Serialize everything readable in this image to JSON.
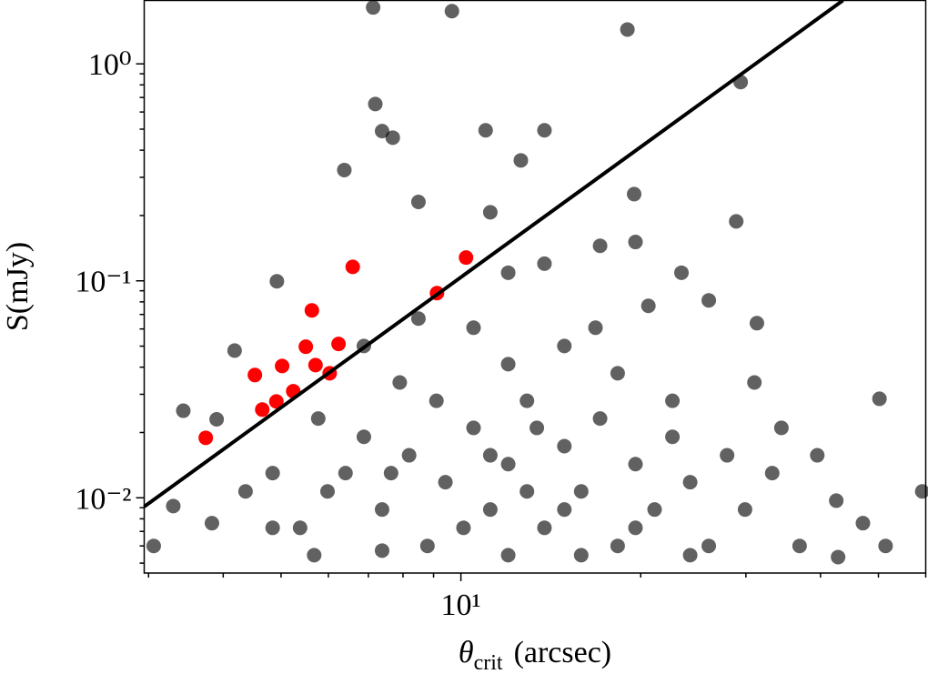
{
  "chart_data": {
    "type": "scatter",
    "xlabel": {
      "symbol": "θ",
      "subscript": "crit",
      "unit": "(arcsec)"
    },
    "ylabel": "S(mJy)",
    "xscale": "log",
    "yscale": "log",
    "xlim": [
      2.95,
      60
    ],
    "ylim": [
      0.0045,
      1.96
    ],
    "xticks": [
      {
        "value": 10,
        "label": "10¹"
      }
    ],
    "yticks": [
      {
        "value": 0.01,
        "label": "10⁻²"
      },
      {
        "value": 0.1,
        "label": "10⁻¹"
      },
      {
        "value": 1,
        "label": "10⁰"
      }
    ],
    "xminor": [
      3,
      4,
      5,
      6,
      7,
      8,
      9,
      20,
      30,
      40,
      50,
      60
    ],
    "yminor": [
      0.005,
      0.006,
      0.007,
      0.008,
      0.009,
      0.02,
      0.03,
      0.04,
      0.05,
      0.06,
      0.07,
      0.08,
      0.09,
      0.2,
      0.3,
      0.4,
      0.5,
      0.6,
      0.7,
      0.8,
      0.9
    ],
    "line": {
      "color": "#000000",
      "x": [
        2.95,
        43.6
      ],
      "y": [
        0.0091,
        1.96
      ]
    },
    "series": [
      {
        "color": "#000000",
        "alpha": 0.62,
        "x": [
          7.13,
          9.66,
          7.19,
          7.38,
          7.69,
          6.38,
          8.49,
          11.0,
          4.92,
          4.18,
          3.43,
          3.9,
          3.06,
          3.3,
          3.83,
          4.36,
          4.84,
          5.38,
          5.98,
          6.88,
          7.38,
          8.19,
          8.79,
          9.42,
          10.5,
          11.2,
          12.0,
          12.9,
          13.8,
          14.9,
          15.9,
          17.1,
          18.3,
          19.6,
          21.1,
          22.6,
          24.2,
          26.0,
          27.9,
          29.9,
          33.2,
          36.9,
          42.5,
          47.1,
          51.4,
          59.2,
          50.2,
          29.4,
          19.0,
          19.6,
          19.5,
          28.9,
          31.3,
          13.8,
          12.6,
          11.2,
          12.0,
          13.8,
          17.1,
          20.6,
          23.4,
          26.0,
          10.5,
          8.49,
          6.88,
          7.9,
          5.77,
          6.41,
          12.0,
          14.9,
          18.3,
          22.6,
          31.0,
          34.4,
          39.5,
          16.8,
          13.4,
          10.1,
          15.9,
          24.2,
          19.6,
          12.9,
          14.9,
          11.2,
          9.1,
          7.64,
          4.84,
          5.68,
          7.38,
          12.0,
          42.8
        ],
        "values": [
          1.82,
          1.75,
          0.653,
          0.49,
          0.457,
          0.324,
          0.231,
          0.494,
          0.0995,
          0.0477,
          0.0252,
          0.023,
          0.006,
          0.00916,
          0.00764,
          0.0107,
          0.013,
          0.00727,
          0.0107,
          0.0191,
          0.00883,
          0.0157,
          0.006,
          0.0118,
          0.021,
          0.00883,
          0.0143,
          0.028,
          0.00727,
          0.0173,
          0.0107,
          0.0232,
          0.006,
          0.0143,
          0.00883,
          0.0191,
          0.0118,
          0.006,
          0.0157,
          0.00883,
          0.013,
          0.006,
          0.0097,
          0.00764,
          0.006,
          0.0107,
          0.0286,
          0.824,
          1.44,
          0.151,
          0.251,
          0.188,
          0.0638,
          0.494,
          0.359,
          0.207,
          0.109,
          0.12,
          0.145,
          0.0767,
          0.109,
          0.0813,
          0.0608,
          0.067,
          0.0501,
          0.034,
          0.0232,
          0.013,
          0.0413,
          0.0501,
          0.0375,
          0.028,
          0.034,
          0.021,
          0.0157,
          0.0608,
          0.021,
          0.00727,
          0.00544,
          0.00544,
          0.00727,
          0.0107,
          0.00883,
          0.0157,
          0.028,
          0.013,
          0.00727,
          0.00544,
          0.00571,
          0.00544,
          0.00533
        ]
      },
      {
        "color": "#ff0000",
        "alpha": 1,
        "x": [
          3.74,
          4.52,
          4.65,
          4.91,
          5.02,
          5.24,
          5.5,
          5.63,
          5.71,
          6.03,
          6.24,
          6.59,
          9.12,
          10.2
        ],
        "values": [
          0.0189,
          0.0368,
          0.0255,
          0.0278,
          0.0405,
          0.031,
          0.0497,
          0.0731,
          0.0409,
          0.0375,
          0.0512,
          0.116,
          0.0878,
          0.128
        ]
      }
    ]
  }
}
